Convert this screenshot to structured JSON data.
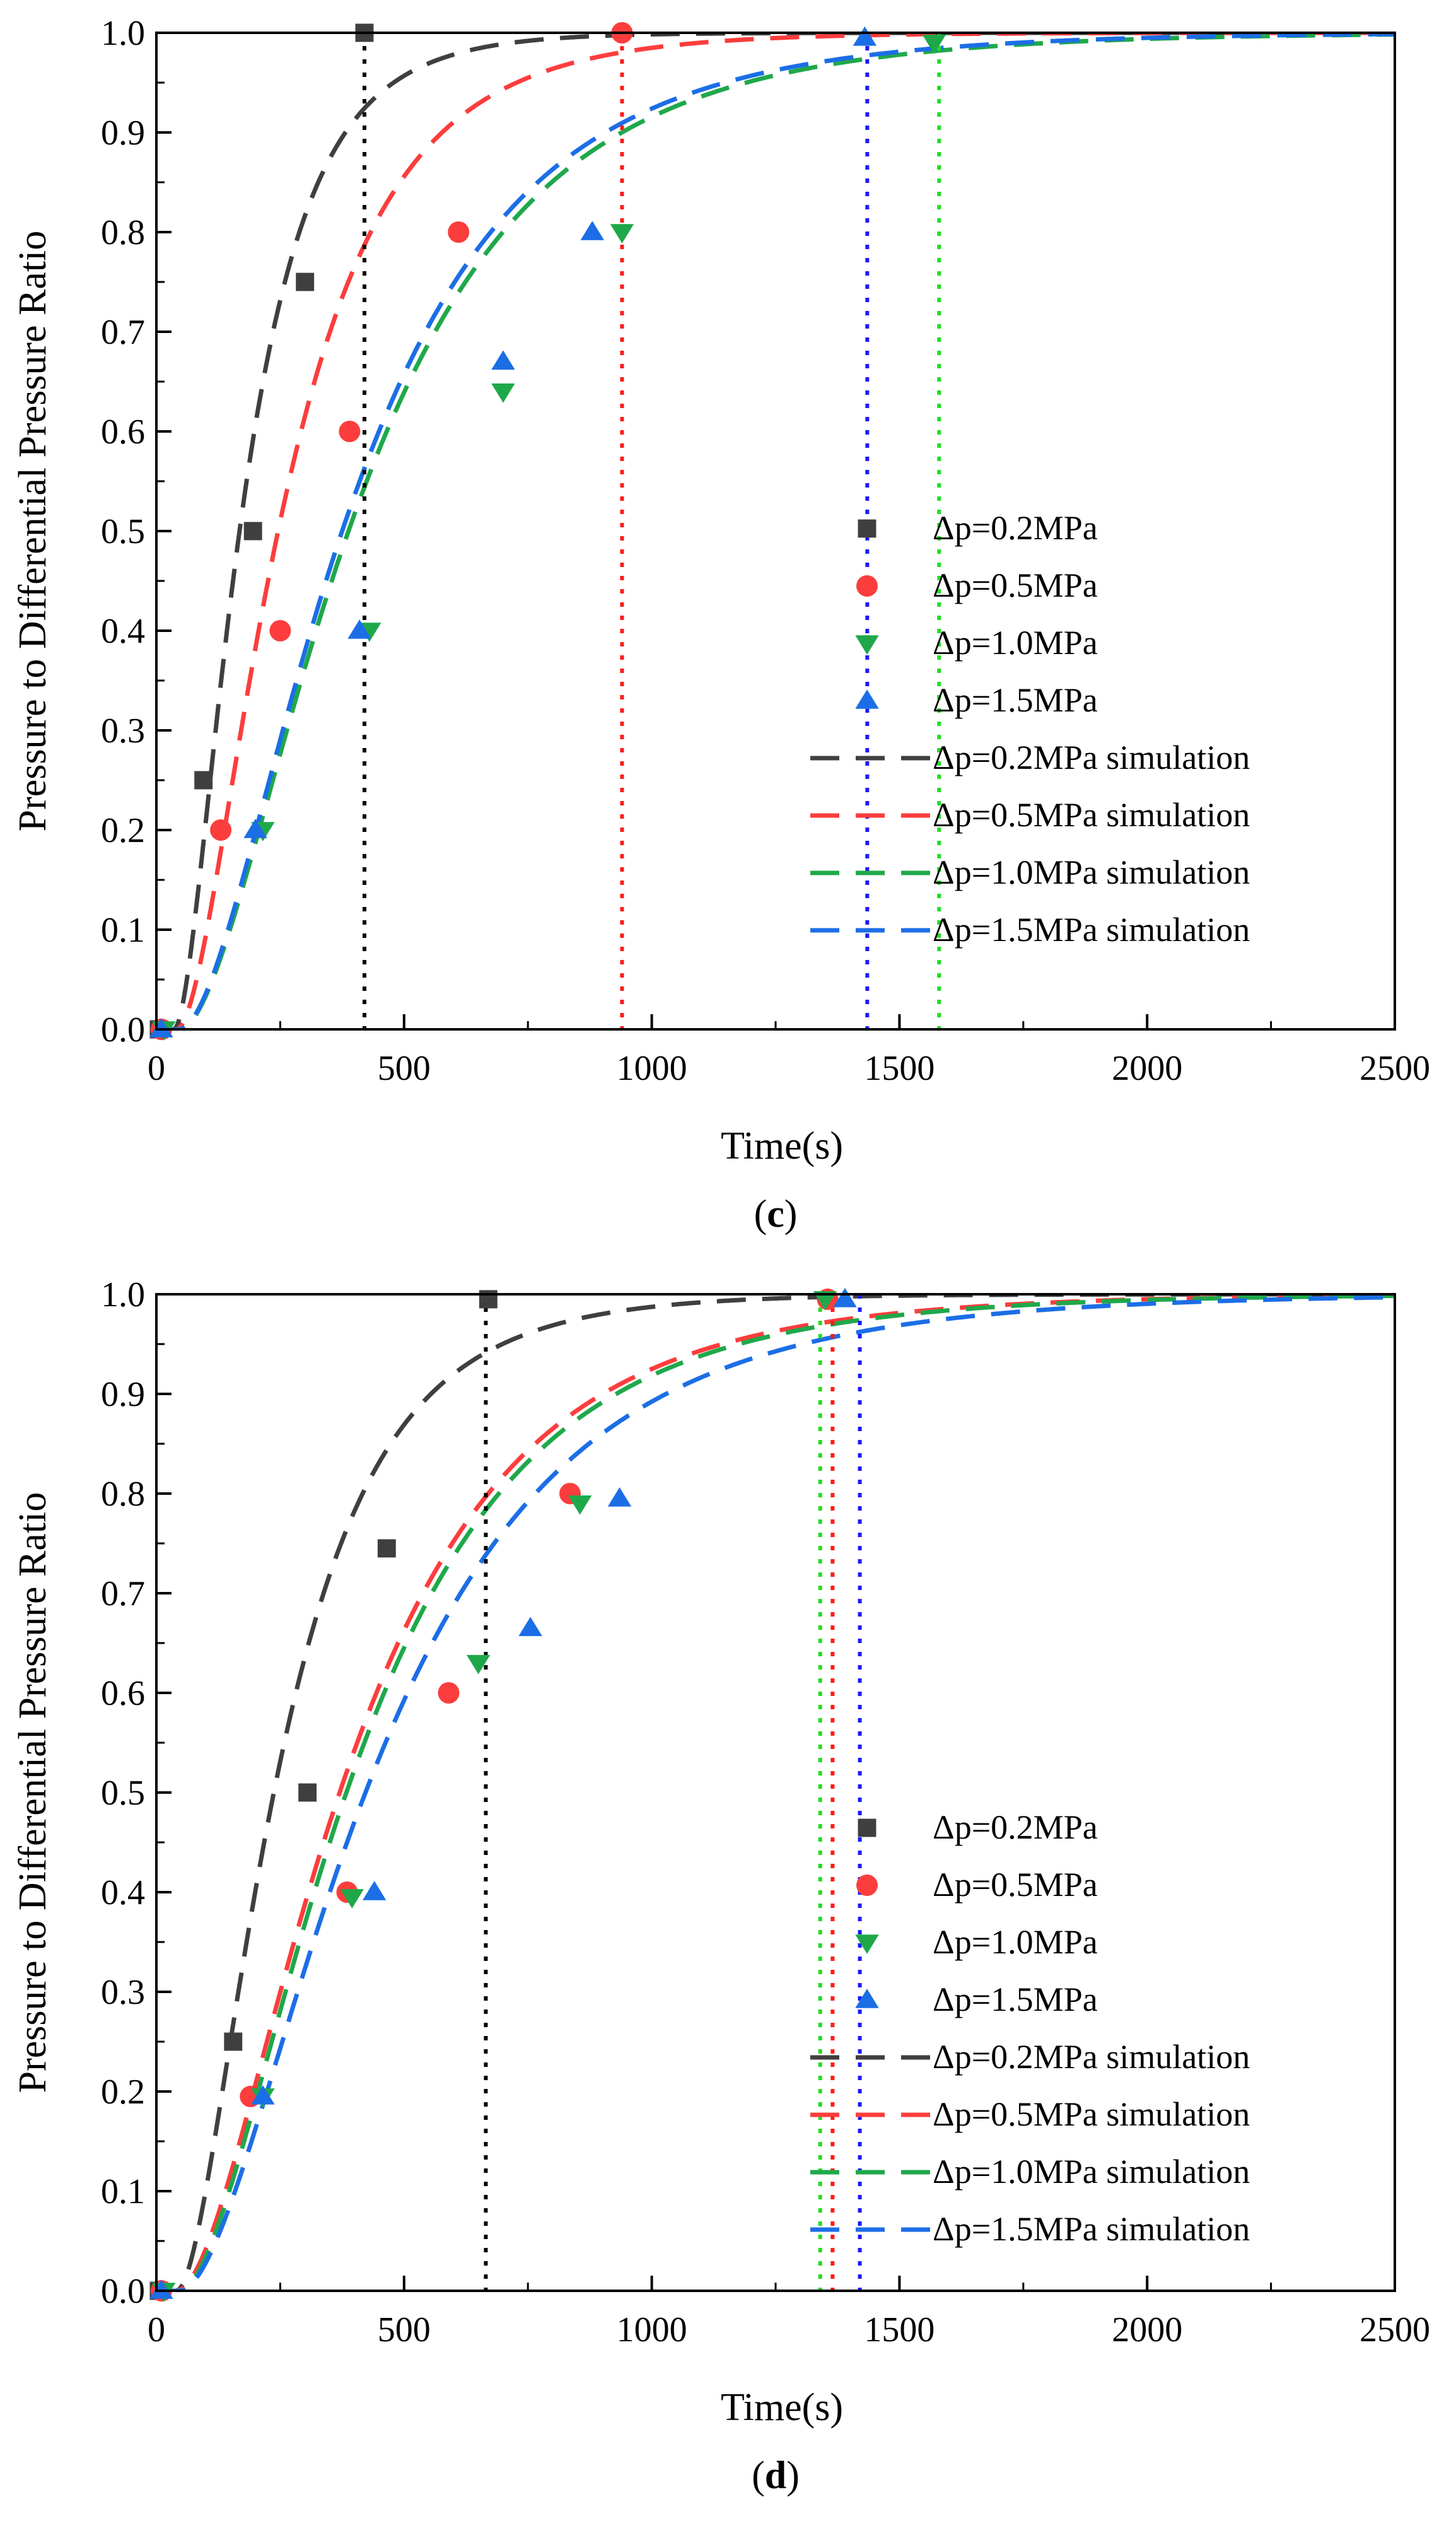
{
  "colors": {
    "s02": "#3f3f3f",
    "s05": "#fc3d3d",
    "s10": "#1fa84a",
    "s15": "#1c6ee6",
    "vline_black": "#000000",
    "vline_red": "#ff1a1a",
    "vline_blue": "#1a1aff",
    "vline_green": "#22dd22"
  },
  "chart_data": [
    {
      "type": "scatter",
      "panel_label_paren_open": "(",
      "panel_label": "c",
      "panel_label_paren_close": ")",
      "xlabel": "Time(s)",
      "ylabel": "Pressure to Differential Pressure Ratio",
      "xlim": [
        0,
        2500
      ],
      "ylim": [
        0,
        1.0
      ],
      "xticks": [
        0,
        500,
        1000,
        1500,
        2000,
        2500
      ],
      "xtick_labels": [
        "0",
        "500",
        "1000",
        "1500",
        "2000",
        "2500"
      ],
      "yticks": [
        0,
        0.1,
        0.2,
        0.3,
        0.4,
        0.5,
        0.6,
        0.7,
        0.8,
        0.9,
        1.0
      ],
      "ytick_labels": [
        "0.0",
        "0.1",
        "0.2",
        "0.3",
        "0.4",
        "0.5",
        "0.6",
        "0.7",
        "0.8",
        "0.9",
        "1.0"
      ],
      "legend_position": "center-right",
      "series": [
        {
          "name": "Δp=0.2MPa",
          "kind": "points",
          "marker": "square",
          "color_key": "s02",
          "x": [
            5,
            95,
            195,
            300,
            420
          ],
          "y": [
            0.0,
            0.25,
            0.5,
            0.75,
            1.0
          ]
        },
        {
          "name": "Δp=0.5MPa",
          "kind": "points",
          "marker": "circle",
          "color_key": "s05",
          "x": [
            10,
            130,
            250,
            390,
            610,
            940
          ],
          "y": [
            0.0,
            0.2,
            0.4,
            0.6,
            0.8,
            1.0
          ]
        },
        {
          "name": "Δp=1.0MPa",
          "kind": "points",
          "marker": "triangle-down",
          "color_key": "s10",
          "x": [
            15,
            215,
            430,
            700,
            940,
            1570
          ],
          "y": [
            0.0,
            0.2,
            0.4,
            0.64,
            0.8,
            0.99
          ]
        },
        {
          "name": "Δp=1.5MPa",
          "kind": "points",
          "marker": "triangle-up",
          "color_key": "s15",
          "x": [
            10,
            200,
            410,
            700,
            880,
            1430
          ],
          "y": [
            0.0,
            0.2,
            0.4,
            0.67,
            0.8,
            0.995
          ]
        },
        {
          "name": "Δp=0.2MPa simulation",
          "kind": "curve",
          "color_key": "s02",
          "delay": 35,
          "tau": 155
        },
        {
          "name": "Δp=0.5MPa simulation",
          "kind": "curve",
          "color_key": "s05",
          "delay": 40,
          "tau": 240
        },
        {
          "name": "Δp=1.0MPa simulation",
          "kind": "curve",
          "color_key": "s10",
          "delay": 45,
          "tau": 400
        },
        {
          "name": "Δp=1.5MPa simulation",
          "kind": "curve",
          "color_key": "s15",
          "delay": 45,
          "tau": 385
        }
      ],
      "vlines": [
        {
          "x": 420,
          "color_key": "vline_black"
        },
        {
          "x": 940,
          "color_key": "vline_red"
        },
        {
          "x": 1435,
          "color_key": "vline_blue"
        },
        {
          "x": 1580,
          "color_key": "vline_green"
        }
      ]
    },
    {
      "type": "scatter",
      "panel_label_paren_open": "(",
      "panel_label": "d",
      "panel_label_paren_close": ")",
      "xlabel": "Time(s)",
      "ylabel": "Pressure to Differential Pressure Ratio",
      "xlim": [
        0,
        2500
      ],
      "ylim": [
        0,
        1.0
      ],
      "xticks": [
        0,
        500,
        1000,
        1500,
        2000,
        2500
      ],
      "xtick_labels": [
        "0",
        "500",
        "1000",
        "1500",
        "2000",
        "2500"
      ],
      "yticks": [
        0,
        0.1,
        0.2,
        0.3,
        0.4,
        0.5,
        0.6,
        0.7,
        0.8,
        0.9,
        1.0
      ],
      "ytick_labels": [
        "0.0",
        "0.1",
        "0.2",
        "0.3",
        "0.4",
        "0.5",
        "0.6",
        "0.7",
        "0.8",
        "0.9",
        "1.0"
      ],
      "legend_position": "center-right",
      "series": [
        {
          "name": "Δp=0.2MPa",
          "kind": "points",
          "marker": "square",
          "color_key": "s02",
          "x": [
            5,
            155,
            305,
            465,
            670
          ],
          "y": [
            0.0,
            0.25,
            0.5,
            0.745,
            0.995
          ]
        },
        {
          "name": "Δp=0.5MPa",
          "kind": "points",
          "marker": "circle",
          "color_key": "s05",
          "x": [
            10,
            190,
            385,
            590,
            835,
            1355
          ],
          "y": [
            0.0,
            0.195,
            0.4,
            0.6,
            0.8,
            0.995
          ]
        },
        {
          "name": "Δp=1.0MPa",
          "kind": "points",
          "marker": "triangle-down",
          "color_key": "s10",
          "x": [
            15,
            215,
            395,
            650,
            855,
            1350
          ],
          "y": [
            0.0,
            0.195,
            0.395,
            0.63,
            0.79,
            0.995
          ]
        },
        {
          "name": "Δp=1.5MPa",
          "kind": "points",
          "marker": "triangle-up",
          "color_key": "s15",
          "x": [
            10,
            215,
            440,
            755,
            935,
            1390
          ],
          "y": [
            0.0,
            0.195,
            0.4,
            0.665,
            0.795,
            0.995
          ]
        },
        {
          "name": "Δp=0.2MPa simulation",
          "kind": "curve",
          "color_key": "s02",
          "delay": 40,
          "tau": 230
        },
        {
          "name": "Δp=0.5MPa simulation",
          "kind": "curve",
          "color_key": "s05",
          "delay": 40,
          "tau": 385
        },
        {
          "name": "Δp=1.0MPa simulation",
          "kind": "curve",
          "color_key": "s10",
          "delay": 45,
          "tau": 395
        },
        {
          "name": "Δp=1.5MPa simulation",
          "kind": "curve",
          "color_key": "s15",
          "delay": 45,
          "tau": 440
        }
      ],
      "vlines": [
        {
          "x": 665,
          "color_key": "vline_black"
        },
        {
          "x": 1340,
          "color_key": "vline_green"
        },
        {
          "x": 1365,
          "color_key": "vline_red"
        },
        {
          "x": 1420,
          "color_key": "vline_blue"
        }
      ]
    }
  ]
}
